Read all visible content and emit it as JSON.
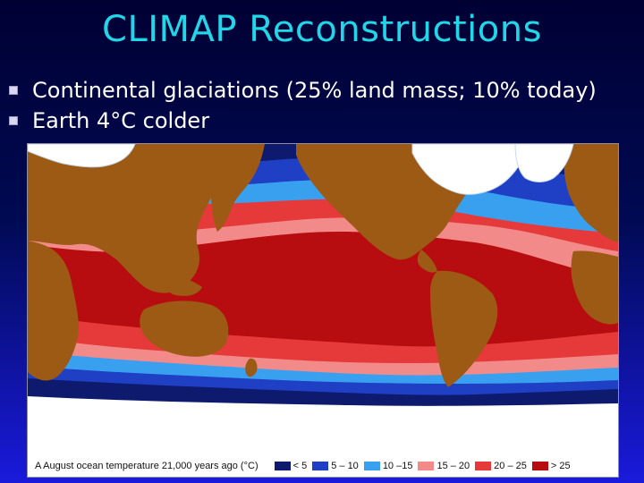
{
  "slide": {
    "title": "CLIMAP Reconstructions",
    "bullets": [
      "Continental glaciations (25% land mass; 10% today)",
      "Earth 4°C colder"
    ]
  },
  "figure": {
    "caption": "A  August ocean temperature 21,000 years ago (°C)",
    "colors": {
      "land": "#9c5a14",
      "ice": "#ffffff",
      "lt5": "#0e1a6e",
      "t5_10": "#1f3fc4",
      "t10_15": "#39a0f0",
      "t15_20": "#f28a8a",
      "t20_25": "#e63a3a",
      "gt25": "#b80d10"
    },
    "legend": [
      {
        "label": "< 5",
        "color": "#0e1a6e"
      },
      {
        "label": "5 – 10",
        "color": "#1f3fc4"
      },
      {
        "label": "10 –15",
        "color": "#39a0f0"
      },
      {
        "label": "15 – 20",
        "color": "#f28a8a"
      },
      {
        "label": "20 – 25",
        "color": "#e63a3a"
      },
      {
        "label": "> 25",
        "color": "#b80d10"
      }
    ]
  }
}
